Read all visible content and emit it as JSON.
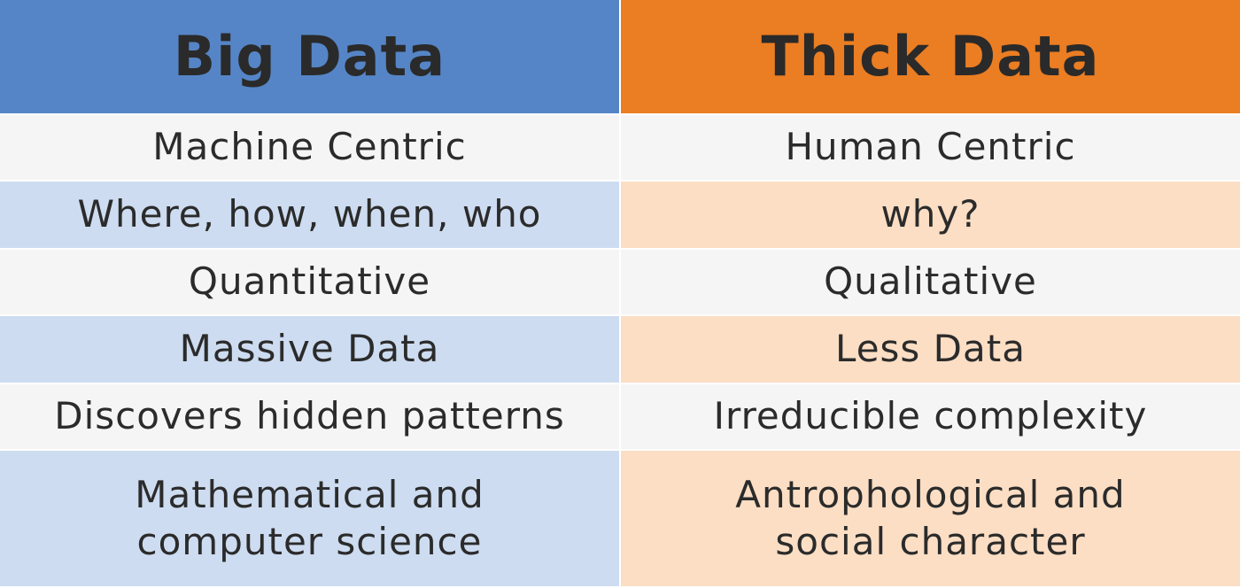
{
  "header": {
    "left_title": "Big Data",
    "right_title": "Thick Data"
  },
  "rows": [
    {
      "big": "Machine Centric",
      "thick": "Human Centric"
    },
    {
      "big": "Where, how, when, who",
      "thick": "why?"
    },
    {
      "big": "Quantitative",
      "thick": "Qualitative"
    },
    {
      "big": "Massive Data",
      "thick": "Less Data"
    },
    {
      "big": "Discovers hidden patterns",
      "thick": "Irreducible complexity"
    },
    {
      "big": "Mathematical and\ncomputer science",
      "thick": "Antrophological and\nsocial character"
    }
  ],
  "colors": {
    "big_header": "#5585c6",
    "thick_header": "#eb7d22",
    "big_row_tint": "#cddcf0",
    "thick_row_tint": "#fbdec4",
    "neutral_row": "#f5f5f5"
  }
}
